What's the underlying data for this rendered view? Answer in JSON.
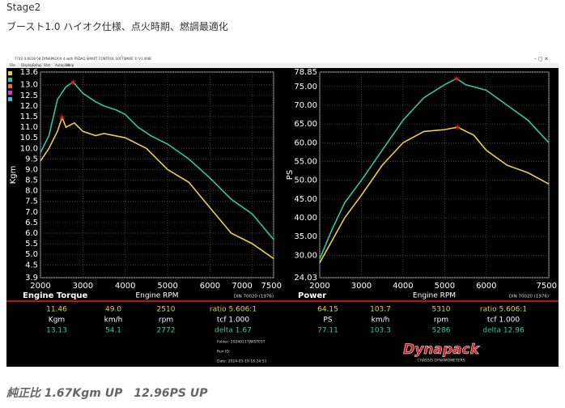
{
  "header": {
    "title": "Stage2",
    "subtitle": "ブースト1.0 ハイオク仕様、点火時期、燃調最適化"
  },
  "window": {
    "title": "7742-4-0018-58 DYNAPACK® 4 with PSDAQ SMART CONTROL SOFTWARE © V1.008F",
    "menu": [
      "File",
      "Display",
      "Setup",
      "Stat",
      "Autopilot",
      "Help"
    ]
  },
  "chart_data": [
    {
      "type": "line",
      "title": "Engine Torque",
      "xlabel": "Engine RPM",
      "ylabel": "Kgm",
      "standard": "DIN 70020 (1976)",
      "grid": true,
      "xlim": [
        2000,
        7500
      ],
      "xticks": [
        2000,
        3000,
        4000,
        5000,
        6000,
        7000,
        7500
      ],
      "ylim": [
        3.9,
        13.6
      ],
      "yticks": [
        3.9,
        4.5,
        {
          "value": 5,
          "label": "5.0"
        },
        5.5,
        {
          "value": 6,
          "label": "6.0"
        },
        6.5,
        {
          "value": 7,
          "label": "7.0"
        },
        7.5,
        {
          "value": 8,
          "label": "8.0"
        },
        8.5,
        {
          "value": 9,
          "label": "9.0"
        },
        9.5,
        {
          "value": 10,
          "label": "10.0"
        },
        10.5,
        {
          "value": 11,
          "label": "11.0"
        },
        11.5,
        {
          "value": 12,
          "label": "12.0"
        },
        12.5,
        {
          "value": 13,
          "label": "13.0"
        },
        13.6
      ],
      "series": [
        {
          "color": "#e8d040",
          "x": [
            2000,
            2200,
            2400,
            2510,
            2600,
            2800,
            3000,
            3300,
            3500,
            4000,
            4500,
            5000,
            5500,
            6000,
            6500,
            7000,
            7500
          ],
          "values": [
            9.4,
            10.0,
            10.8,
            11.46,
            11.0,
            11.2,
            10.8,
            10.6,
            10.7,
            10.5,
            10.0,
            9.0,
            8.4,
            7.2,
            6.0,
            5.5,
            4.8
          ]
        },
        {
          "color": "#2ec8a0",
          "x": [
            2000,
            2200,
            2400,
            2600,
            2772,
            3000,
            3300,
            3500,
            3800,
            4000,
            4300,
            4600,
            5000,
            5500,
            6000,
            6500,
            7000,
            7500
          ],
          "values": [
            9.8,
            10.6,
            12.3,
            12.9,
            13.13,
            12.6,
            12.2,
            12.0,
            11.8,
            11.6,
            11.0,
            10.6,
            10.2,
            9.5,
            8.6,
            7.6,
            6.9,
            5.7
          ]
        }
      ]
    },
    {
      "type": "line",
      "title": "Power",
      "xlabel": "Engine RPM",
      "ylabel": "PS",
      "standard": "DIN 70020 (1976)",
      "grid": true,
      "xlim": [
        2000,
        7500
      ],
      "xticks": [
        2000,
        3000,
        4000,
        5000,
        6000,
        7500
      ],
      "ylim": [
        24.03,
        78.85
      ],
      "yticks": [
        24.03,
        {
          "value": 30,
          "label": "30.00"
        },
        {
          "value": 35,
          "label": "35.00"
        },
        {
          "value": 40,
          "label": "40.00"
        },
        {
          "value": 45,
          "label": "45.00"
        },
        {
          "value": 50,
          "label": "50.00"
        },
        {
          "value": 55,
          "label": "55.00"
        },
        {
          "value": 60,
          "label": "60.00"
        },
        {
          "value": 65,
          "label": "65.00"
        },
        {
          "value": 70,
          "label": "70.00"
        },
        {
          "value": 75,
          "label": "75.00"
        },
        78.85
      ],
      "series": [
        {
          "color": "#e8d040",
          "x": [
            2000,
            2300,
            2600,
            3000,
            3500,
            4000,
            4500,
            5000,
            5310,
            5700,
            6000,
            6500,
            7000,
            7500
          ],
          "values": [
            28,
            34,
            40,
            46,
            54,
            60,
            63,
            63.5,
            64.15,
            62,
            58,
            54,
            52,
            49
          ]
        },
        {
          "color": "#2ec8a0",
          "x": [
            2000,
            2300,
            2600,
            3000,
            3500,
            4000,
            4500,
            5000,
            5286,
            5500,
            6000,
            6500,
            7000,
            7500
          ],
          "values": [
            29,
            37,
            44,
            50,
            58,
            66,
            72,
            75.5,
            77.11,
            75.5,
            74,
            70,
            66,
            60
          ]
        }
      ]
    }
  ],
  "readouts": [
    {
      "rows": [
        [
          "11.46",
          "49.0",
          "2510",
          "ratio 5.606:1"
        ],
        [
          "Kgm",
          "km/h",
          "rpm",
          "tcf 1.000"
        ],
        [
          "13.13",
          "54.1",
          "2772",
          "delta 1.67"
        ]
      ]
    },
    {
      "rows": [
        [
          "64.15",
          "103.7",
          "5310",
          "ratio 5.606:1"
        ],
        [
          "PS",
          "km/h",
          "rpm",
          "tcf 1.000"
        ],
        [
          "77.11",
          "103.3",
          "5286",
          "delta 12.96"
        ]
      ]
    }
  ],
  "info": [
    "Folder: 20240117JWSTEST",
    "Run ID:",
    "Date: 2024-01-19 18:24:51"
  ],
  "logo": {
    "name": "Dynapack",
    "tagline": "CHASSIS DYNAMOMETERS"
  },
  "footer": "純正比 1.67Kgm UP　12.96PS UP"
}
